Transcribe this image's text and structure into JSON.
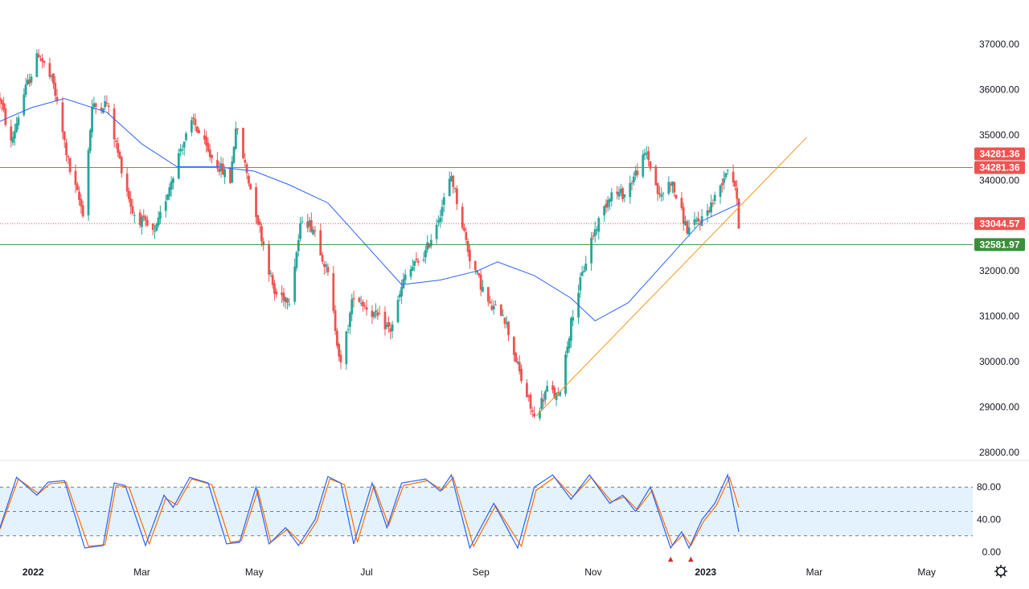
{
  "colors": {
    "up": "#26a69a",
    "down": "#ef5350",
    "ma": "#2962ff",
    "resistance": "#ef5350",
    "support": "#3a8f3a",
    "trend": "#f7931a",
    "stoch_k": "#2962ff",
    "stoch_d": "#ff6d00",
    "stoch_band": "#e3f2fd",
    "marker": "#d32f2f",
    "grid_border": "#e0e3eb"
  },
  "icons": {
    "settings": "gear-icon"
  },
  "chart_data": [
    {
      "type": "candlestick",
      "title": "",
      "ylim": [
        28000,
        37000
      ],
      "y_ticks": [
        "37000.00",
        "36000.00",
        "35000.00",
        "34000.00",
        "33000.00",
        "32000.00",
        "31000.00",
        "30000.00",
        "29000.00",
        "28000.00"
      ],
      "y_tick_values": [
        37000,
        36000,
        35000,
        34000,
        33000,
        32000,
        31000,
        30000,
        29000,
        28000
      ],
      "x_range": [
        "2021-12-14",
        "2023-05-26"
      ],
      "x_ticks": [
        {
          "label": "2022",
          "date": "2022-01-01"
        },
        {
          "label": "Mar",
          "date": "2022-03-01"
        },
        {
          "label": "May",
          "date": "2022-05-01"
        },
        {
          "label": "Jul",
          "date": "2022-07-01"
        },
        {
          "label": "Sep",
          "date": "2022-09-01"
        },
        {
          "label": "Nov",
          "date": "2022-11-01"
        },
        {
          "label": "2023",
          "date": "2023-01-01"
        },
        {
          "label": "Mar",
          "date": "2023-03-01"
        },
        {
          "label": "May",
          "date": "2023-05-01"
        }
      ],
      "price_path": [
        [
          "2021-12-14",
          35800
        ],
        [
          "2021-12-20",
          34800
        ],
        [
          "2021-12-27",
          35900
        ],
        [
          "2022-01-04",
          36800
        ],
        [
          "2022-01-12",
          36100
        ],
        [
          "2022-01-21",
          34200
        ],
        [
          "2022-01-28",
          33300
        ],
        [
          "2022-02-02",
          35600
        ],
        [
          "2022-02-10",
          35700
        ],
        [
          "2022-02-16",
          34600
        ],
        [
          "2022-02-24",
          33300
        ],
        [
          "2022-03-08",
          32800
        ],
        [
          "2022-03-22",
          34700
        ],
        [
          "2022-03-29",
          35300
        ],
        [
          "2022-04-06",
          34600
        ],
        [
          "2022-04-18",
          34000
        ],
        [
          "2022-04-21",
          35200
        ],
        [
          "2022-05-02",
          33300
        ],
        [
          "2022-05-12",
          31500
        ],
        [
          "2022-05-20",
          31400
        ],
        [
          "2022-05-27",
          33200
        ],
        [
          "2022-06-03",
          32900
        ],
        [
          "2022-06-10",
          31900
        ],
        [
          "2022-06-17",
          29900
        ],
        [
          "2022-06-24",
          31500
        ],
        [
          "2022-07-06",
          31000
        ],
        [
          "2022-07-14",
          30700
        ],
        [
          "2022-07-22",
          31900
        ],
        [
          "2022-08-02",
          32400
        ],
        [
          "2022-08-10",
          33300
        ],
        [
          "2022-08-16",
          34100
        ],
        [
          "2022-08-26",
          32300
        ],
        [
          "2022-09-06",
          31200
        ],
        [
          "2022-09-13",
          31100
        ],
        [
          "2022-09-23",
          29600
        ],
        [
          "2022-09-30",
          28750
        ],
        [
          "2022-10-07",
          29400
        ],
        [
          "2022-10-13",
          29200
        ],
        [
          "2022-10-21",
          31100
        ],
        [
          "2022-10-31",
          32700
        ],
        [
          "2022-11-10",
          33700
        ],
        [
          "2022-11-18",
          33700
        ],
        [
          "2022-11-30",
          34600
        ],
        [
          "2022-12-07",
          33600
        ],
        [
          "2022-12-13",
          34000
        ],
        [
          "2022-12-22",
          32900
        ],
        [
          "2022-12-30",
          33150
        ],
        [
          "2023-01-06",
          33600
        ],
        [
          "2023-01-13",
          34300
        ],
        [
          "2023-01-17",
          33900
        ],
        [
          "2023-01-19",
          33044.57
        ]
      ],
      "moving_average": [
        [
          "2021-12-14",
          35300
        ],
        [
          "2021-12-31",
          35600
        ],
        [
          "2022-01-18",
          35800
        ],
        [
          "2022-02-10",
          35500
        ],
        [
          "2022-03-01",
          34800
        ],
        [
          "2022-03-20",
          34300
        ],
        [
          "2022-04-10",
          34300
        ],
        [
          "2022-05-01",
          34200
        ],
        [
          "2022-05-20",
          33900
        ],
        [
          "2022-06-10",
          33500
        ],
        [
          "2022-06-30",
          32600
        ],
        [
          "2022-07-20",
          31700
        ],
        [
          "2022-08-10",
          31800
        ],
        [
          "2022-08-30",
          32000
        ],
        [
          "2022-09-10",
          32200
        ],
        [
          "2022-09-30",
          31900
        ],
        [
          "2022-10-20",
          31400
        ],
        [
          "2022-11-02",
          30900
        ],
        [
          "2022-11-20",
          31300
        ],
        [
          "2022-12-10",
          32200
        ],
        [
          "2022-12-30",
          33100
        ],
        [
          "2023-01-20",
          33500
        ]
      ],
      "horizontal_lines": [
        {
          "name": "resistance",
          "value": 34281.36,
          "label": "34281.36",
          "style": "solid",
          "color": "#ef5350"
        },
        {
          "name": "last-price",
          "value": 33044.57,
          "label": "33044.57",
          "style": "dotted",
          "color": "#ef5350"
        },
        {
          "name": "support",
          "value": 32581.97,
          "label": "32581.97",
          "style": "solid",
          "color": "#3a8f3a"
        }
      ],
      "extra_badges": [
        {
          "name": "resistance-badge-2",
          "label": "34281.36",
          "color": "#ef5350"
        }
      ],
      "trend_line": {
        "start": [
          "2022-10-01",
          28800
        ],
        "end": [
          "2023-02-25",
          34950
        ]
      },
      "grid": false
    },
    {
      "type": "line",
      "title": "",
      "ylim": [
        0,
        100
      ],
      "y_ticks": [
        "80.00",
        "40.00",
        "0.00"
      ],
      "y_tick_values": [
        80,
        40,
        0
      ],
      "levels": [
        80,
        50,
        20
      ],
      "series": [
        {
          "key": "k",
          "values": [
            [
              "2021-12-14",
              30
            ],
            [
              "2021-12-23",
              92
            ],
            [
              "2022-01-03",
              70
            ],
            [
              "2022-01-09",
              86
            ],
            [
              "2022-01-18",
              88
            ],
            [
              "2022-01-29",
              5
            ],
            [
              "2022-02-08",
              8
            ],
            [
              "2022-02-14",
              85
            ],
            [
              "2022-02-20",
              82
            ],
            [
              "2022-03-03",
              8
            ],
            [
              "2022-03-13",
              70
            ],
            [
              "2022-03-18",
              55
            ],
            [
              "2022-03-27",
              92
            ],
            [
              "2022-04-06",
              85
            ],
            [
              "2022-04-16",
              10
            ],
            [
              "2022-04-23",
              12
            ],
            [
              "2022-05-02",
              80
            ],
            [
              "2022-05-09",
              10
            ],
            [
              "2022-05-18",
              30
            ],
            [
              "2022-05-25",
              8
            ],
            [
              "2022-06-03",
              40
            ],
            [
              "2022-06-10",
              93
            ],
            [
              "2022-06-17",
              85
            ],
            [
              "2022-06-24",
              10
            ],
            [
              "2022-07-04",
              85
            ],
            [
              "2022-07-12",
              30
            ],
            [
              "2022-07-20",
              85
            ],
            [
              "2022-08-02",
              90
            ],
            [
              "2022-08-10",
              75
            ],
            [
              "2022-08-16",
              95
            ],
            [
              "2022-08-26",
              5
            ],
            [
              "2022-09-08",
              60
            ],
            [
              "2022-09-21",
              5
            ],
            [
              "2022-09-30",
              80
            ],
            [
              "2022-10-10",
              95
            ],
            [
              "2022-10-20",
              65
            ],
            [
              "2022-10-30",
              95
            ],
            [
              "2022-11-10",
              60
            ],
            [
              "2022-11-17",
              70
            ],
            [
              "2022-11-24",
              50
            ],
            [
              "2022-12-02",
              80
            ],
            [
              "2022-12-13",
              5
            ],
            [
              "2022-12-19",
              25
            ],
            [
              "2022-12-23",
              5
            ],
            [
              "2022-12-30",
              40
            ],
            [
              "2023-01-06",
              60
            ],
            [
              "2023-01-13",
              95
            ],
            [
              "2023-01-19",
              25
            ]
          ]
        },
        {
          "key": "d",
          "values": [
            [
              "2021-12-14",
              28
            ],
            [
              "2021-12-24",
              90
            ],
            [
              "2022-01-04",
              72
            ],
            [
              "2022-01-10",
              84
            ],
            [
              "2022-01-19",
              86
            ],
            [
              "2022-01-31",
              7
            ],
            [
              "2022-02-09",
              9
            ],
            [
              "2022-02-15",
              82
            ],
            [
              "2022-02-22",
              80
            ],
            [
              "2022-03-05",
              10
            ],
            [
              "2022-03-14",
              66
            ],
            [
              "2022-03-20",
              58
            ],
            [
              "2022-03-28",
              90
            ],
            [
              "2022-04-08",
              83
            ],
            [
              "2022-04-18",
              12
            ],
            [
              "2022-04-24",
              14
            ],
            [
              "2022-05-03",
              76
            ],
            [
              "2022-05-10",
              12
            ],
            [
              "2022-05-19",
              28
            ],
            [
              "2022-05-27",
              10
            ],
            [
              "2022-06-04",
              38
            ],
            [
              "2022-06-11",
              90
            ],
            [
              "2022-06-19",
              83
            ],
            [
              "2022-06-26",
              12
            ],
            [
              "2022-07-05",
              82
            ],
            [
              "2022-07-13",
              33
            ],
            [
              "2022-07-21",
              82
            ],
            [
              "2022-08-03",
              88
            ],
            [
              "2022-08-11",
              76
            ],
            [
              "2022-08-17",
              92
            ],
            [
              "2022-08-28",
              7
            ],
            [
              "2022-09-09",
              57
            ],
            [
              "2022-09-23",
              7
            ],
            [
              "2022-10-01",
              76
            ],
            [
              "2022-10-11",
              92
            ],
            [
              "2022-10-21",
              68
            ],
            [
              "2022-10-31",
              92
            ],
            [
              "2022-11-11",
              62
            ],
            [
              "2022-11-18",
              68
            ],
            [
              "2022-11-25",
              52
            ],
            [
              "2022-12-03",
              76
            ],
            [
              "2022-12-14",
              8
            ],
            [
              "2022-12-20",
              22
            ],
            [
              "2022-12-24",
              8
            ],
            [
              "2022-12-31",
              38
            ],
            [
              "2023-01-07",
              58
            ],
            [
              "2023-01-14",
              92
            ],
            [
              "2023-01-19",
              55
            ]
          ]
        }
      ],
      "markers": [
        {
          "name": "oversold-marker-1",
          "date": "2022-12-13",
          "symbol": "▲"
        },
        {
          "name": "oversold-marker-2",
          "date": "2022-12-24",
          "symbol": "▲"
        }
      ]
    }
  ]
}
